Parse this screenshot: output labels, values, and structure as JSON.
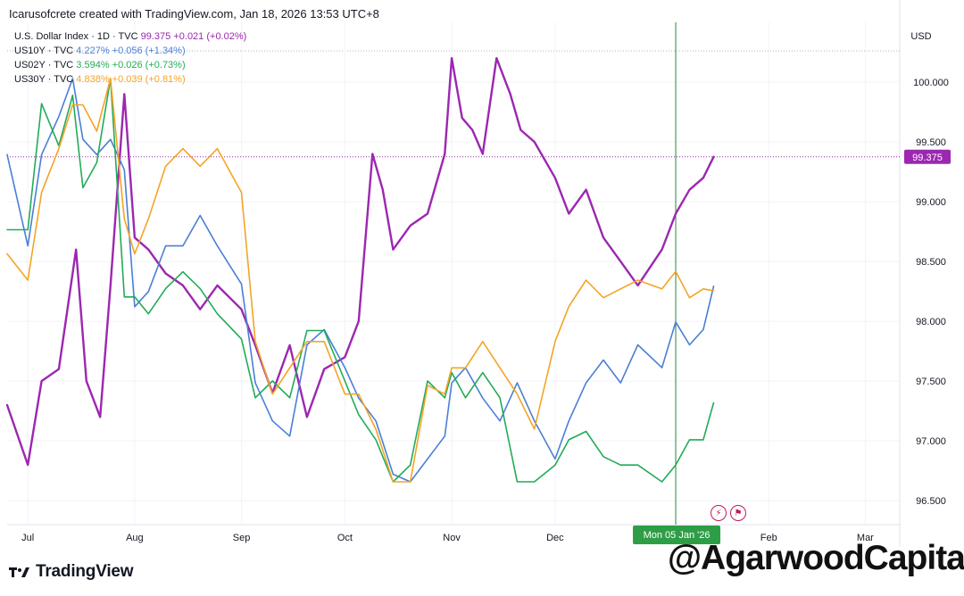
{
  "attribution": "Icarusofcrete created with TradingView.com, Jan 18, 2026 13:53 UTC+8",
  "brand": "TradingView",
  "watermark": "@AgarwoodCapital",
  "currency": "USD",
  "chart_data": {
    "type": "line",
    "title": "U.S. Dollar Index · 1D · TVC",
    "yaxis_label": "USD",
    "ylim": [
      96.3,
      100.5
    ],
    "y_ticks": [
      "100.000",
      "99.500",
      "99.000",
      "98.500",
      "98.000",
      "97.500",
      "97.000",
      "96.500"
    ],
    "y_tick_values": [
      100.0,
      99.5,
      99.0,
      98.5,
      98.0,
      97.5,
      97.0,
      96.5
    ],
    "x_ticks": [
      "Jul",
      "Aug",
      "Sep",
      "Oct",
      "Nov",
      "Dec",
      "Feb",
      "Mar"
    ],
    "x_tick_dates": [
      "2025-07-01",
      "2025-08-01",
      "2025-09-01",
      "2025-10-01",
      "2025-11-01",
      "2025-12-01",
      "2026-02-01",
      "2026-03-01"
    ],
    "x_range": [
      "2025-06-25",
      "2026-03-11"
    ],
    "crosshair": {
      "date": "2026-01-05",
      "label": "Mon 05 Jan '26"
    },
    "last_value": {
      "series": "U.S. Dollar Index",
      "value": 99.375,
      "label": "99.375"
    },
    "series": [
      {
        "name": "U.S. Dollar Index",
        "symbol": "U.S. Dollar Index · 1D · TVC",
        "color": "#9c27b0",
        "legend_value": "99.375",
        "legend_change": "+0.021 (+0.02%)",
        "x": [
          "2025-06-25",
          "2025-07-01",
          "2025-07-05",
          "2025-07-10",
          "2025-07-15",
          "2025-07-18",
          "2025-07-22",
          "2025-07-25",
          "2025-07-29",
          "2025-08-01",
          "2025-08-05",
          "2025-08-10",
          "2025-08-15",
          "2025-08-20",
          "2025-08-25",
          "2025-09-01",
          "2025-09-05",
          "2025-09-10",
          "2025-09-15",
          "2025-09-20",
          "2025-09-25",
          "2025-10-01",
          "2025-10-05",
          "2025-10-09",
          "2025-10-12",
          "2025-10-15",
          "2025-10-20",
          "2025-10-25",
          "2025-10-30",
          "2025-11-01",
          "2025-11-04",
          "2025-11-07",
          "2025-11-10",
          "2025-11-14",
          "2025-11-18",
          "2025-11-21",
          "2025-11-25",
          "2025-12-01",
          "2025-12-05",
          "2025-12-10",
          "2025-12-15",
          "2025-12-20",
          "2025-12-25",
          "2026-01-01",
          "2026-01-05",
          "2026-01-09",
          "2026-01-13",
          "2026-01-16"
        ],
        "y": [
          97.3,
          96.8,
          97.5,
          97.6,
          98.6,
          97.5,
          97.2,
          98.3,
          99.9,
          98.7,
          98.6,
          98.4,
          98.3,
          98.1,
          98.3,
          98.1,
          97.8,
          97.4,
          97.8,
          97.2,
          97.6,
          97.7,
          98.0,
          99.4,
          99.1,
          98.6,
          98.8,
          98.9,
          99.4,
          100.2,
          99.7,
          99.6,
          99.4,
          100.2,
          99.9,
          99.6,
          99.5,
          99.2,
          98.9,
          99.1,
          98.7,
          98.5,
          98.3,
          98.6,
          98.9,
          99.1,
          99.2,
          99.375
        ]
      },
      {
        "name": "US10Y",
        "symbol": "US10Y · TVC",
        "color": "#4a7fd6",
        "legend_value": "4.227%",
        "legend_change": "+0.056 (+1.34%)",
        "x": [
          "2025-06-25",
          "2025-07-01",
          "2025-07-05",
          "2025-07-10",
          "2025-07-14",
          "2025-07-17",
          "2025-07-21",
          "2025-07-25",
          "2025-07-29",
          "2025-08-01",
          "2025-08-05",
          "2025-08-10",
          "2025-08-15",
          "2025-08-20",
          "2025-08-25",
          "2025-09-01",
          "2025-09-05",
          "2025-09-10",
          "2025-09-15",
          "2025-09-20",
          "2025-09-25",
          "2025-10-01",
          "2025-10-05",
          "2025-10-10",
          "2025-10-15",
          "2025-10-20",
          "2025-10-25",
          "2025-10-30",
          "2025-11-01",
          "2025-11-05",
          "2025-11-10",
          "2025-11-15",
          "2025-11-20",
          "2025-11-25",
          "2025-12-01",
          "2025-12-05",
          "2025-12-10",
          "2025-12-15",
          "2025-12-20",
          "2025-12-25",
          "2026-01-01",
          "2026-01-05",
          "2026-01-09",
          "2026-01-13",
          "2026-01-16"
        ],
        "y": [
          4.4,
          4.28,
          4.4,
          4.45,
          4.5,
          4.42,
          4.4,
          4.42,
          4.38,
          4.2,
          4.22,
          4.28,
          4.28,
          4.32,
          4.28,
          4.23,
          4.1,
          4.05,
          4.03,
          4.15,
          4.17,
          4.12,
          4.08,
          4.05,
          3.98,
          3.97,
          4.0,
          4.03,
          4.1,
          4.12,
          4.08,
          4.05,
          4.1,
          4.05,
          4.0,
          4.05,
          4.1,
          4.13,
          4.1,
          4.15,
          4.12,
          4.18,
          4.15,
          4.17,
          4.227
        ]
      },
      {
        "name": "US02Y",
        "symbol": "US02Y · TVC",
        "color": "#22ab58",
        "legend_value": "3.594%",
        "legend_change": "+0.026 (+0.73%)",
        "x": [
          "2025-06-25",
          "2025-07-01",
          "2025-07-05",
          "2025-07-10",
          "2025-07-14",
          "2025-07-17",
          "2025-07-21",
          "2025-07-25",
          "2025-07-29",
          "2025-08-01",
          "2025-08-05",
          "2025-08-10",
          "2025-08-15",
          "2025-08-20",
          "2025-08-25",
          "2025-09-01",
          "2025-09-05",
          "2025-09-10",
          "2025-09-15",
          "2025-09-20",
          "2025-09-25",
          "2025-10-01",
          "2025-10-05",
          "2025-10-10",
          "2025-10-15",
          "2025-10-20",
          "2025-10-25",
          "2025-10-30",
          "2025-11-01",
          "2025-11-05",
          "2025-11-10",
          "2025-11-15",
          "2025-11-20",
          "2025-11-25",
          "2025-12-01",
          "2025-12-05",
          "2025-12-10",
          "2025-12-15",
          "2025-12-20",
          "2025-12-25",
          "2026-01-01",
          "2026-01-05",
          "2026-01-09",
          "2026-01-13",
          "2026-01-16"
        ],
        "y": [
          3.8,
          3.8,
          3.95,
          3.9,
          3.96,
          3.85,
          3.88,
          3.98,
          3.72,
          3.72,
          3.7,
          3.73,
          3.75,
          3.73,
          3.7,
          3.67,
          3.6,
          3.62,
          3.6,
          3.68,
          3.68,
          3.62,
          3.58,
          3.55,
          3.5,
          3.52,
          3.62,
          3.6,
          3.63,
          3.6,
          3.63,
          3.6,
          3.5,
          3.5,
          3.52,
          3.55,
          3.56,
          3.53,
          3.52,
          3.52,
          3.5,
          3.52,
          3.55,
          3.55,
          3.594
        ]
      },
      {
        "name": "US30Y",
        "symbol": "US30Y · TVC",
        "color": "#f4a425",
        "legend_value": "4.838%",
        "legend_change": "+0.039 (+0.81%)",
        "x": [
          "2025-06-25",
          "2025-07-01",
          "2025-07-05",
          "2025-07-10",
          "2025-07-14",
          "2025-07-17",
          "2025-07-21",
          "2025-07-25",
          "2025-07-29",
          "2025-08-01",
          "2025-08-05",
          "2025-08-10",
          "2025-08-15",
          "2025-08-20",
          "2025-08-25",
          "2025-09-01",
          "2025-09-05",
          "2025-09-10",
          "2025-09-15",
          "2025-09-20",
          "2025-09-25",
          "2025-10-01",
          "2025-10-05",
          "2025-10-10",
          "2025-10-15",
          "2025-10-20",
          "2025-10-25",
          "2025-10-30",
          "2025-11-01",
          "2025-11-05",
          "2025-11-10",
          "2025-11-15",
          "2025-11-20",
          "2025-11-25",
          "2025-12-01",
          "2025-12-05",
          "2025-12-10",
          "2025-12-15",
          "2025-12-20",
          "2025-12-25",
          "2026-01-01",
          "2026-01-05",
          "2026-01-09",
          "2026-01-13",
          "2026-01-16"
        ],
        "y": [
          4.88,
          4.85,
          4.95,
          5.0,
          5.05,
          5.05,
          5.02,
          5.08,
          4.92,
          4.88,
          4.92,
          4.98,
          5.0,
          4.98,
          5.0,
          4.95,
          4.78,
          4.72,
          4.75,
          4.78,
          4.78,
          4.72,
          4.72,
          4.68,
          4.62,
          4.62,
          4.73,
          4.72,
          4.75,
          4.75,
          4.78,
          4.75,
          4.72,
          4.68,
          4.78,
          4.82,
          4.85,
          4.83,
          4.84,
          4.85,
          4.84,
          4.86,
          4.83,
          4.84,
          4.838
        ]
      }
    ]
  }
}
